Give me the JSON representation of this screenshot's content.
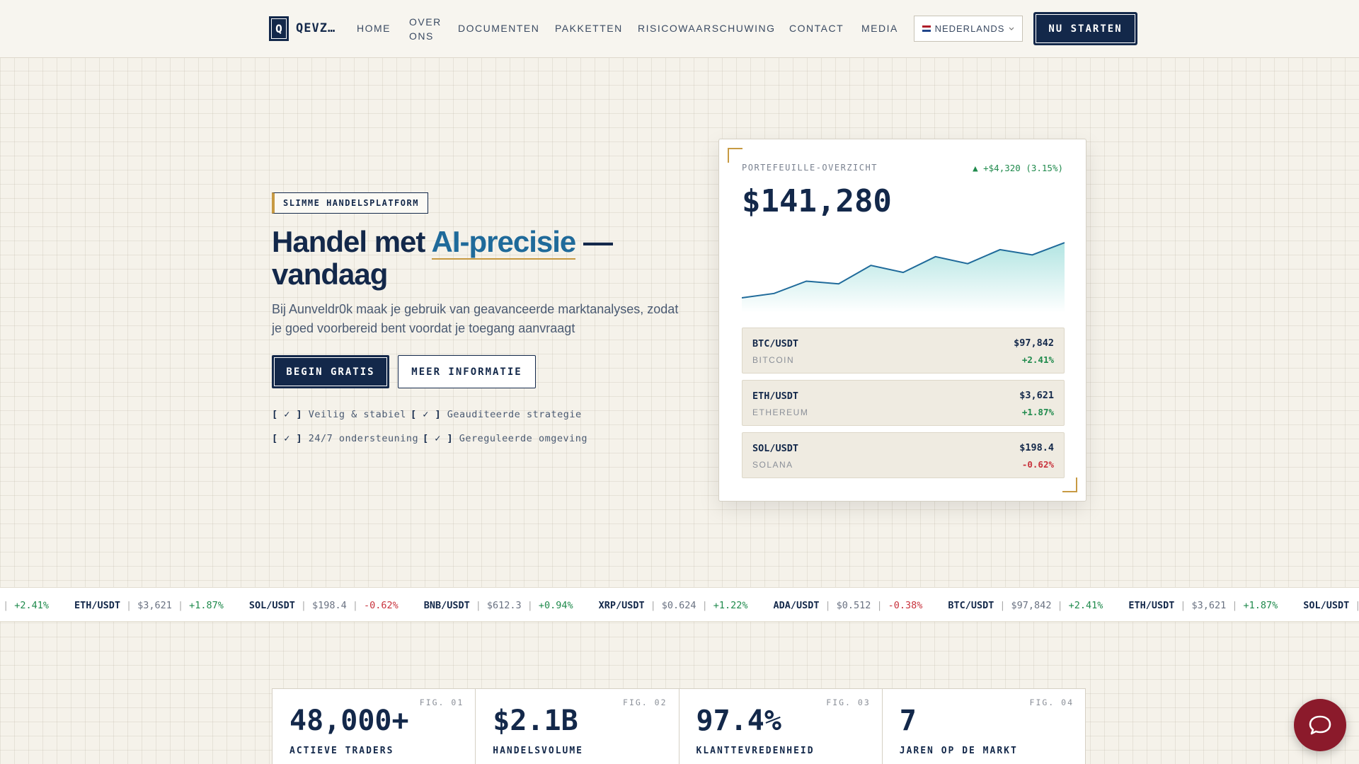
{
  "nav": {
    "logo_letter": "Q",
    "brand": "QEVZ…",
    "links": [
      "HOME",
      "OVER ONS",
      "DOCUMENTEN",
      "PAKKETTEN",
      "RISICOWAARSCHUWING",
      "CONTACT",
      "MEDIA"
    ],
    "language": "NEDERLANDS",
    "cta": "NU STARTEN"
  },
  "hero": {
    "badge": "SLIMME HANDELSPLATFORM",
    "title_before": "Handel met",
    "title_highlight": "AI-precisie",
    "title_after": "—",
    "title_line2": "vandaag",
    "description": "Bij Aunveldr0k maak je gebruik van geavanceerde marktanalyses, zodat je goed voorbereid bent voordat je toegang aanvraagt",
    "primary_button": "BEGIN GRATIS",
    "secondary_button": "MEER INFORMATIE",
    "check": "[ ✓ ]",
    "features": [
      "Veilig & stabiel",
      "Geauditeerde strategie",
      "24/7 ondersteuning",
      "Gereguleerde omgeving"
    ]
  },
  "portfolio": {
    "label": "PORTEFEUILLE-OVERZICHT",
    "change": "▲ +$4,320 (3.15%)",
    "total": "$141,280",
    "chart": {
      "type": "area",
      "values": [
        20,
        25,
        39,
        36,
        57,
        49,
        67,
        59,
        75,
        69,
        83
      ],
      "color": "#1f6a9a"
    },
    "assets": [
      {
        "pair": "BTC/USDT",
        "name": "BITCOIN",
        "price": "$97,842",
        "change": "+2.41%"
      },
      {
        "pair": "ETH/USDT",
        "name": "ETHEREUM",
        "price": "$3,621",
        "change": "+1.87%"
      },
      {
        "pair": "SOL/USDT",
        "name": "SOLANA",
        "price": "$198.4",
        "change": "-0.62%"
      }
    ]
  },
  "ticker": {
    "separator": "|",
    "items": [
      {
        "pair": "BTC/USDT",
        "price": "$97,842",
        "change": "+2.41%"
      },
      {
        "pair": "ETH/USDT",
        "price": "$3,621",
        "change": "+1.87%"
      },
      {
        "pair": "SOL/USDT",
        "price": "$198.4",
        "change": "-0.62%"
      },
      {
        "pair": "BNB/USDT",
        "price": "$612.3",
        "change": "+0.94%"
      },
      {
        "pair": "XRP/USDT",
        "price": "$0.624",
        "change": "+1.22%"
      },
      {
        "pair": "ADA/USDT",
        "price": "$0.512",
        "change": "-0.38%"
      }
    ]
  },
  "stats": [
    {
      "fig": "FIG. 01",
      "value": "48,000+",
      "label": "ACTIEVE TRADERS"
    },
    {
      "fig": "FIG. 02",
      "value": "$2.1B",
      "label": "HANDELSVOLUME"
    },
    {
      "fig": "FIG. 03",
      "value": "97.4%",
      "label": "KLANTTEVREDENHEID"
    },
    {
      "fig": "FIG. 04",
      "value": "7",
      "label": "JAREN OP DE MARKT"
    }
  ]
}
